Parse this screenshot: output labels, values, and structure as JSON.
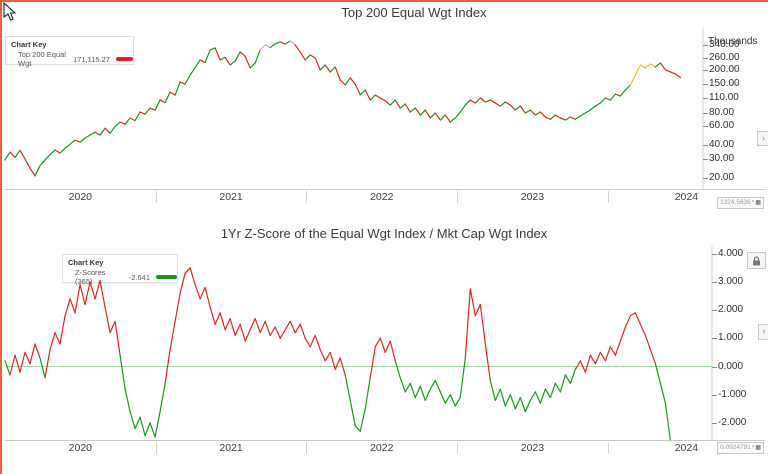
{
  "ui": {
    "frame_color": "#e8603c",
    "icons": {
      "cursor": "mouse-arrow-icon",
      "lock": "padlock-icon",
      "top_panel_arrow": "›",
      "bottom_panel_arrow": "‹",
      "readout_flag": "ᶠᶠ",
      "readout_grid": "▦"
    },
    "top_chart_key": {
      "heading": "Chart Key",
      "name": "Top 200 Equal Wgt",
      "value": "171,115.27",
      "swatch_color": "#e02020"
    },
    "bottom_chart_key": {
      "heading": "Chart Key",
      "name": "Z-Scores (365)",
      "value": "-2.641",
      "swatch_color": "#149a14"
    }
  },
  "chart_data": [
    {
      "type": "line",
      "title": "Top 200 Equal Wgt Index",
      "readout": "1324.5636",
      "y_axis": {
        "label": "Thousands",
        "scale": "log",
        "ticks": [
          {
            "v": 340,
            "label": "340.00"
          },
          {
            "v": 260,
            "label": "260.00"
          },
          {
            "v": 200,
            "label": "200.00"
          },
          {
            "v": 150,
            "label": "150.00"
          },
          {
            "v": 110,
            "label": "110.00"
          },
          {
            "v": 80,
            "label": "80.00"
          },
          {
            "v": 60,
            "label": "60.00"
          },
          {
            "v": 40,
            "label": "40.00"
          },
          {
            "v": 30,
            "label": "30.00"
          },
          {
            "v": 20,
            "label": "20.00"
          }
        ]
      },
      "x_axis": {
        "years": [
          "2020",
          "2021",
          "2022",
          "2023",
          "2024"
        ]
      },
      "colors": {
        "up": "#0f9a16",
        "down": "#e0281c",
        "overrides": [
          {
            "from": 2021.69,
            "to": 2021.77,
            "color": "#d9a0e8"
          },
          {
            "from": 2021.88,
            "to": 2021.94,
            "color": "#d9a0e8"
          },
          {
            "from": 2024.16,
            "to": 2024.33,
            "color": "#e3c51f"
          }
        ]
      },
      "series": [
        {
          "name": "Top 200 Equal Wgt",
          "last_value": 171115.27,
          "units": "thousands",
          "start_year": 2020.0,
          "step_years": 0.0332,
          "values": [
            29.4,
            34.8,
            31,
            36,
            30,
            24.7,
            20.9,
            26,
            29.4,
            33,
            36.3,
            34,
            37.8,
            41,
            44.8,
            43,
            46.8,
            50,
            53.1,
            50,
            57.8,
            51.9,
            60,
            65.9,
            63,
            71.9,
            68,
            81.6,
            78,
            88.9,
            85,
            105.4,
            100,
            125.1,
            117,
            155.1,
            148,
            179.9,
            210,
            247.7,
            235,
            306.6,
            320,
            247.7,
            262,
            222.7,
            242,
            293.9,
            268,
            209,
            232,
            306.6,
            341.2,
            322,
            348.6,
            364.1,
            348,
            371,
            341,
            293.9,
            247.7,
            275.6,
            258,
            200.2,
            222.7,
            191.8,
            213,
            161.8,
            145.3,
            168.9,
            148,
            118,
            130.6,
            105.4,
            117.3,
            110,
            104,
            94.8,
            105.4,
            88.9,
            96.8,
            81.6,
            88.9,
            76.6,
            85.2,
            71.9,
            79.9,
            68.8,
            76.6,
            65.9,
            71.9,
            81.6,
            94.8,
            105.4,
            98.9,
            110.1,
            101,
            105.4,
            98.9,
            92.8,
            101,
            94.8,
            85.2,
            92.8,
            79.9,
            85.2,
            76.6,
            81.6,
            73.4,
            70,
            76.6,
            71.9,
            68.8,
            73.4,
            70,
            75,
            79.9,
            85.2,
            92.8,
            98.9,
            110.1,
            105.4,
            119.9,
            114.9,
            130.6,
            145.3,
            179.9,
            222.7,
            209,
            227.5,
            213.5,
            232.4,
            200.2,
            191.8,
            183.8,
            171.1
          ]
        }
      ]
    },
    {
      "type": "line",
      "title": "1Yr Z-Score of the Equal Wgt Index / Mkt Cap Wgt Index",
      "readout": "0.0924791",
      "y_axis": {
        "scale": "linear",
        "ticks": [
          {
            "v": 4,
            "label": "4.000"
          },
          {
            "v": 3,
            "label": "3.000"
          },
          {
            "v": 2,
            "label": "2.000"
          },
          {
            "v": 1,
            "label": "1.000"
          },
          {
            "v": 0,
            "label": "0.000"
          },
          {
            "v": -1,
            "label": "-1.000"
          },
          {
            "v": -2,
            "label": "-2.000"
          }
        ]
      },
      "x_axis": {
        "years": [
          "2020",
          "2021",
          "2022",
          "2023",
          "2024"
        ]
      },
      "zero_line": true,
      "colors": {
        "pos": "#e0281c",
        "neg": "#149a14",
        "zero_line": "#a4dba4"
      },
      "series": [
        {
          "name": "Z-Scores (365)",
          "last_value": -2.641,
          "start_year": 2020.0,
          "step_years": 0.0332,
          "values": [
            0.2,
            -0.3,
            0.4,
            -0.2,
            0.5,
            0.1,
            0.8,
            0.3,
            -0.4,
            0.6,
            1.2,
            0.8,
            1.8,
            2.4,
            1.9,
            2.9,
            2.2,
            3.0,
            2.4,
            3.05,
            2.1,
            1.2,
            1.6,
            0.4,
            -0.8,
            -1.6,
            -2.2,
            -1.8,
            -2.45,
            -2.0,
            -2.5,
            -1.6,
            -0.6,
            0.6,
            1.6,
            2.6,
            3.3,
            3.5,
            2.9,
            2.4,
            2.8,
            2.1,
            1.5,
            1.9,
            1.3,
            1.7,
            1.1,
            1.5,
            0.9,
            1.3,
            1.7,
            1.2,
            1.6,
            1.1,
            1.4,
            1.0,
            1.3,
            1.6,
            1.2,
            1.5,
            1.0,
            0.7,
            1.1,
            0.6,
            0.2,
            0.5,
            -0.1,
            0.3,
            -0.3,
            -1.2,
            -2.1,
            -2.3,
            -1.5,
            -0.4,
            0.7,
            1.0,
            0.5,
            0.9,
            0.2,
            -0.4,
            -0.9,
            -0.6,
            -1.1,
            -0.7,
            -1.2,
            -0.8,
            -0.5,
            -0.9,
            -1.3,
            -1.0,
            -1.4,
            -1.1,
            0.3,
            2.75,
            1.8,
            2.2,
            0.8,
            -0.5,
            -1.2,
            -0.8,
            -1.4,
            -1.0,
            -1.5,
            -1.1,
            -1.6,
            -1.2,
            -0.9,
            -1.3,
            -0.8,
            -1.1,
            -0.6,
            -0.9,
            -0.3,
            -0.6,
            -0.1,
            0.2,
            -0.2,
            0.4,
            0.1,
            0.5,
            0.2,
            0.7,
            0.4,
            0.9,
            1.4,
            1.8,
            1.9,
            1.5,
            1.1,
            0.6,
            0.1,
            -0.6,
            -1.3,
            -2.641
          ]
        }
      ]
    }
  ]
}
